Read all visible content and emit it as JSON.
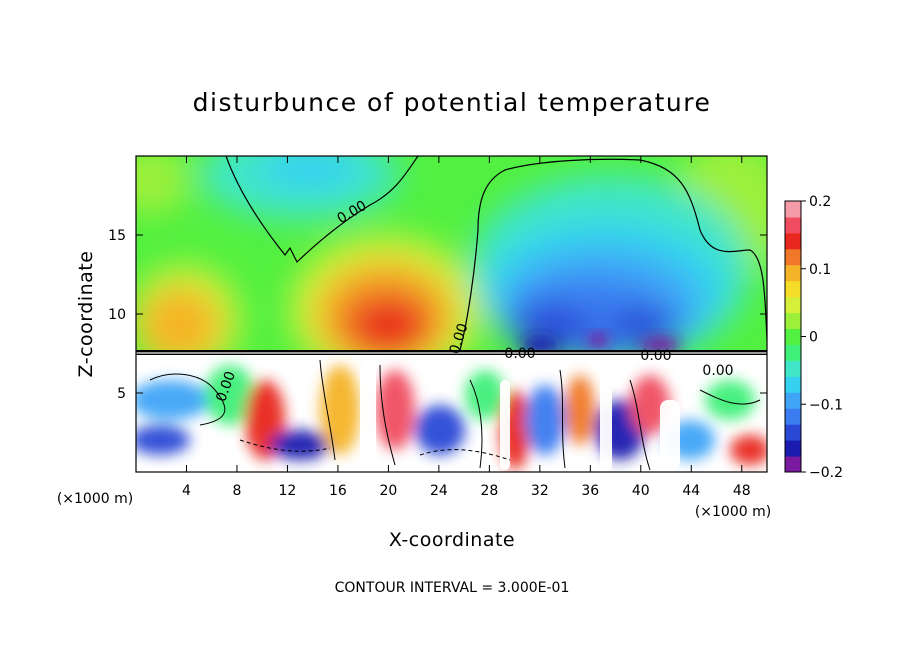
{
  "chart_data": {
    "type": "heatmap",
    "title": "disturbunce of potential temperature",
    "xlabel": "X-coordinate",
    "ylabel": "Z-coordinate",
    "x_unit": "(×1000 m)",
    "xlim": [
      0,
      50
    ],
    "ylim": [
      0,
      20
    ],
    "x_ticks": [
      4,
      8,
      12,
      16,
      20,
      24,
      28,
      32,
      36,
      40,
      44,
      48
    ],
    "y_ticks": [
      5,
      10,
      15
    ],
    "colorbar": {
      "min": -0.2,
      "max": 0.2,
      "tick_values": [
        0.2,
        0.1,
        0,
        -0.1,
        -0.2
      ],
      "tick_labels": [
        "0.2",
        "0.1",
        "0",
        "−0.1",
        "−0.2"
      ],
      "colors": [
        "#7a1a9e",
        "#1b1bb0",
        "#2a48d6",
        "#3b7cf0",
        "#41a5f7",
        "#34d2f0",
        "#40e6c8",
        "#3ff07a",
        "#52f040",
        "#9cf03a",
        "#d6f03a",
        "#f5dc28",
        "#f5b428",
        "#f07828",
        "#e8281e",
        "#f04e60",
        "#f59aa8"
      ]
    },
    "contour_interval_text": "CONTOUR INTERVAL = 3.000E-01",
    "contour_labels": [
      "0.00",
      "0.00",
      "0.00",
      "0.00",
      "0.00",
      "0.00"
    ],
    "features": [
      {
        "x": 20,
        "z": 10.5,
        "value": 0.15
      },
      {
        "x": 5,
        "z": 10.5,
        "value": 0.1
      },
      {
        "x": 40,
        "z": 9,
        "value": -0.18
      },
      {
        "x": 32,
        "z": 9,
        "value": -0.17
      },
      {
        "x": 12,
        "z": 18.5,
        "value": -0.06
      },
      {
        "x": 35,
        "z": 15,
        "value": -0.07
      }
    ]
  }
}
